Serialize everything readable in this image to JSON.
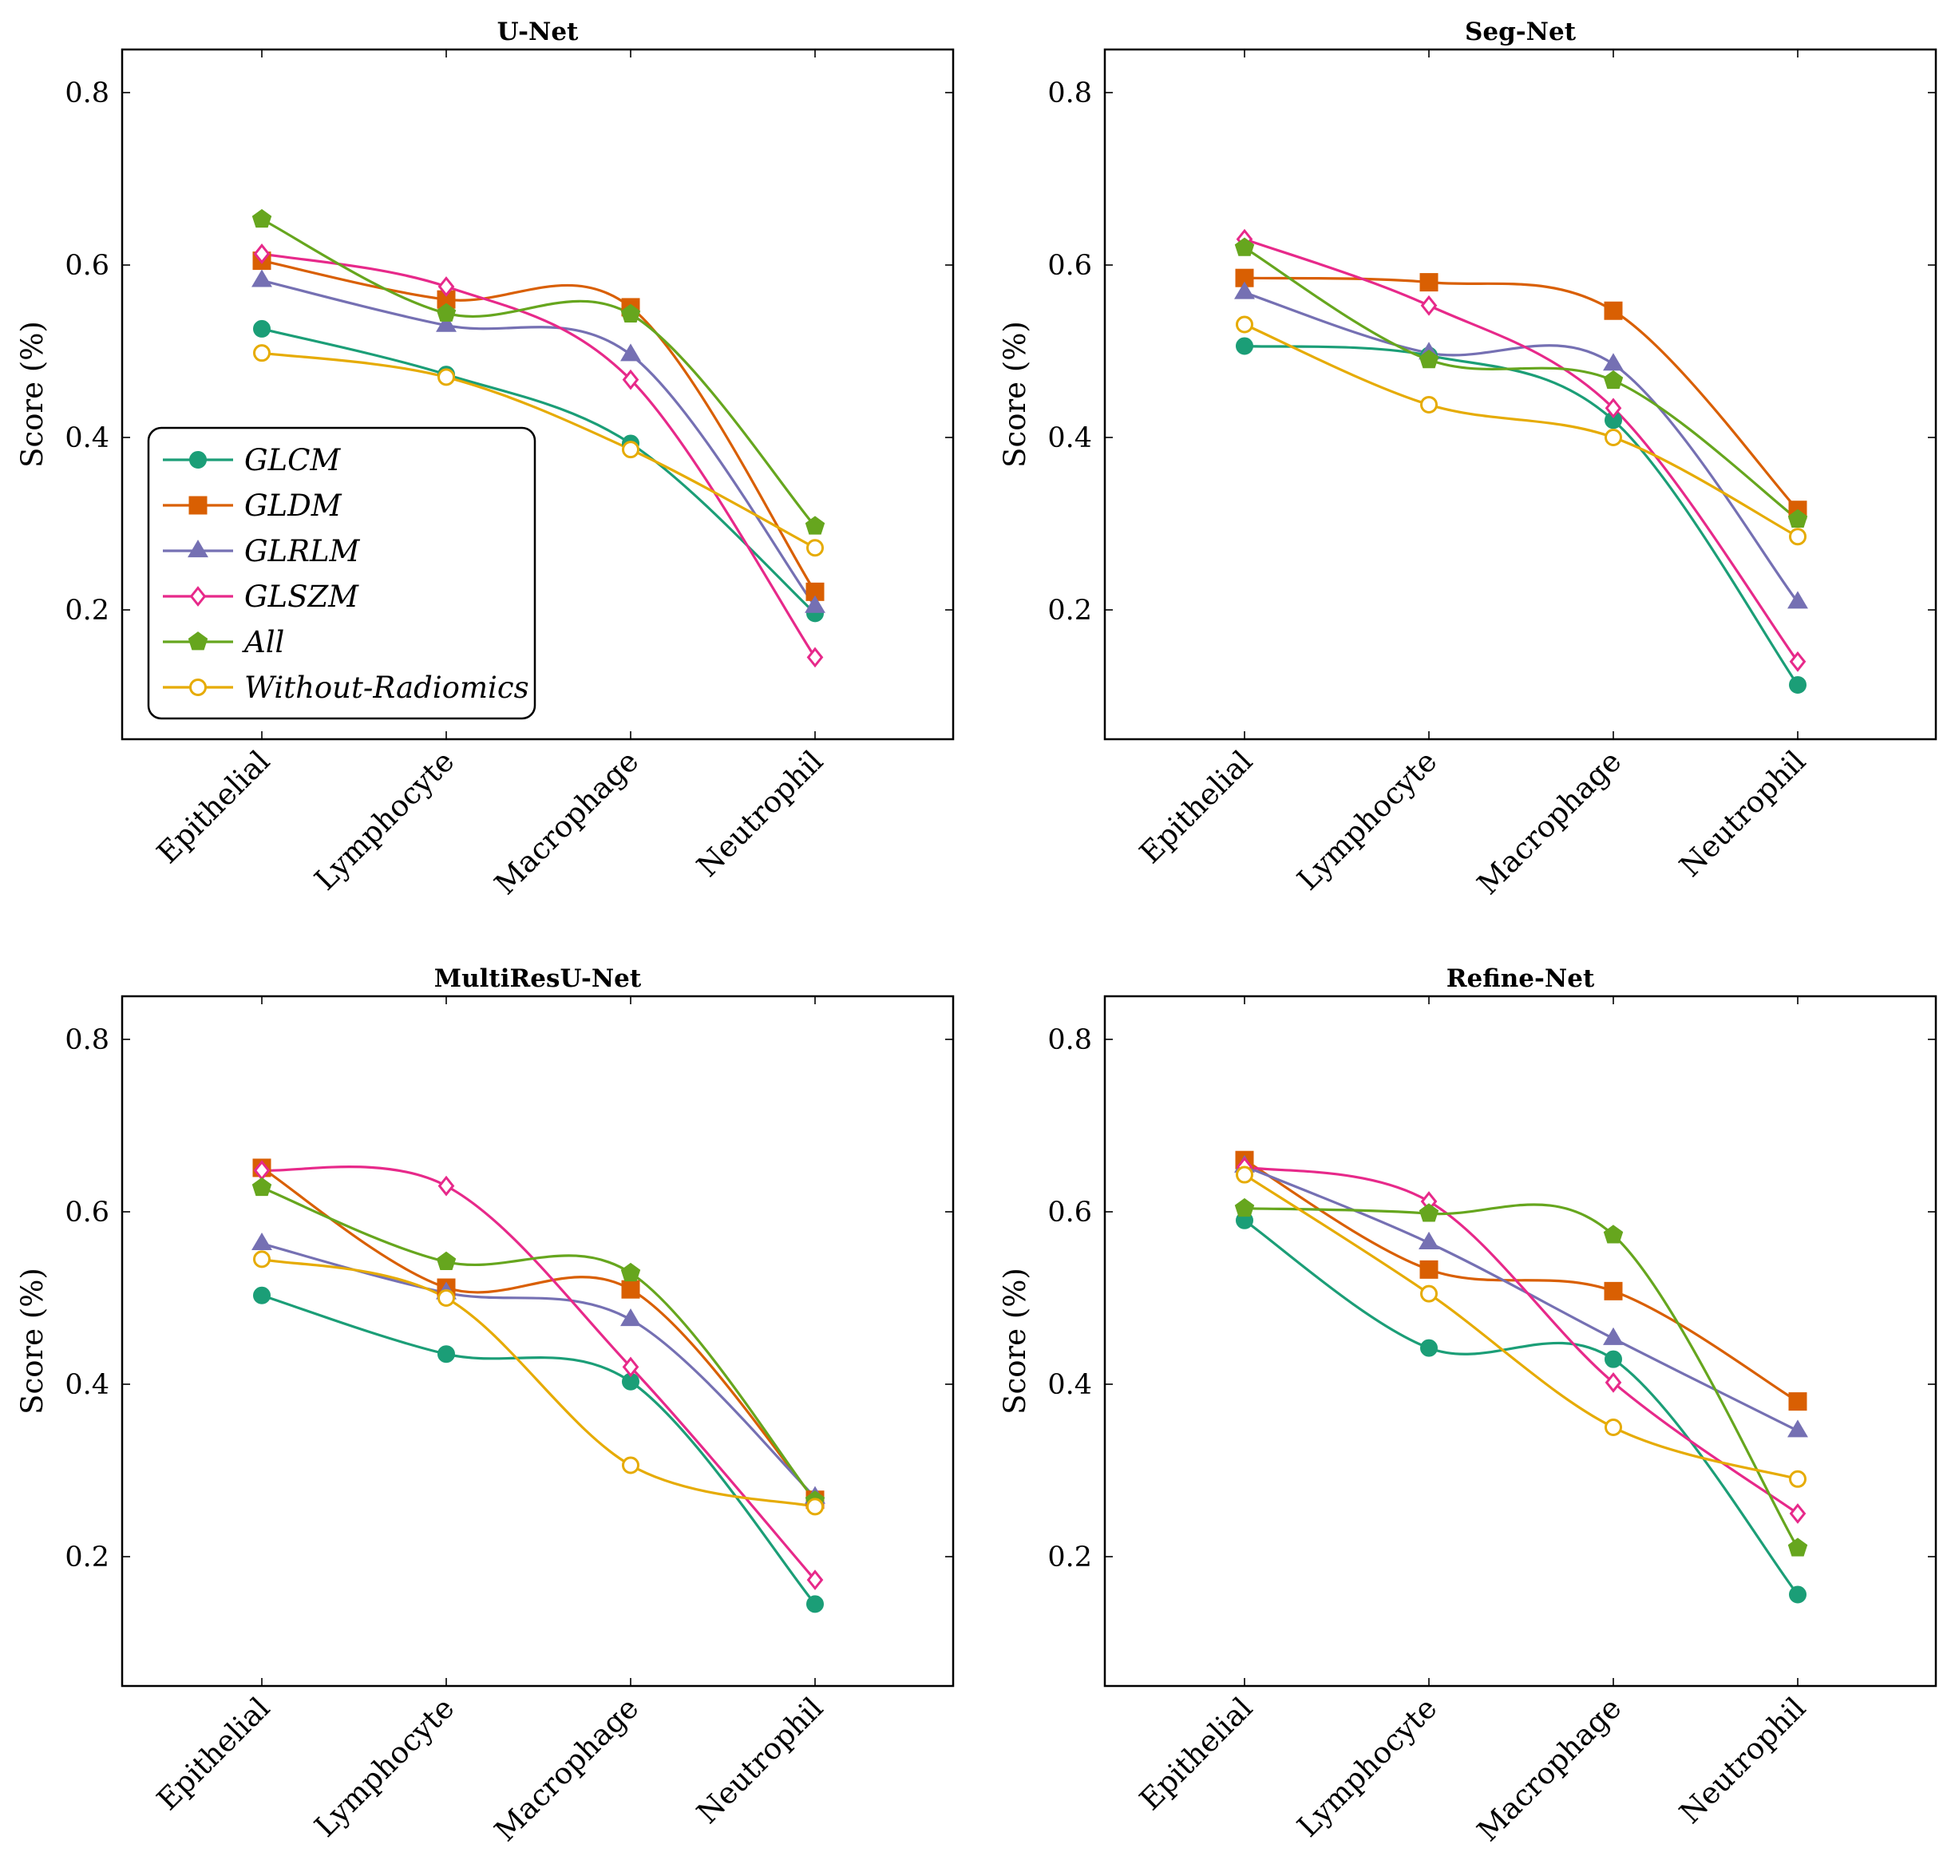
{
  "chart_data": [
    {
      "type": "line",
      "title": "U-Net",
      "xlabel": "",
      "ylabel": "Score (%)",
      "ylim": [
        0.05,
        0.85
      ],
      "yticks": [
        0.2,
        0.4,
        0.6,
        0.8
      ],
      "ytick_labels": [
        "0.2",
        "0.4",
        "0.6",
        "0.8"
      ],
      "categories": [
        "Epithelial",
        "Lymphocyte",
        "Macrophage",
        "Neutrophil"
      ],
      "legend_position": "lower-left",
      "series": [
        {
          "name": "GLCM",
          "values": [
            0.526,
            0.473,
            0.393,
            0.196
          ]
        },
        {
          "name": "GLDM",
          "values": [
            0.605,
            0.56,
            0.551,
            0.221
          ]
        },
        {
          "name": "GLRLM",
          "values": [
            0.582,
            0.53,
            0.496,
            0.204
          ]
        },
        {
          "name": "GLSZM",
          "values": [
            0.613,
            0.575,
            0.467,
            0.145
          ]
        },
        {
          "name": "All",
          "values": [
            0.653,
            0.544,
            0.543,
            0.297
          ]
        },
        {
          "name": "Without-Radiomics",
          "values": [
            0.498,
            0.47,
            0.386,
            0.272
          ]
        }
      ]
    },
    {
      "type": "line",
      "title": "Seg-Net",
      "xlabel": "",
      "ylabel": "Score (%)",
      "ylim": [
        0.05,
        0.85
      ],
      "yticks": [
        0.2,
        0.4,
        0.6,
        0.8
      ],
      "ytick_labels": [
        "0.2",
        "0.4",
        "0.6",
        "0.8"
      ],
      "categories": [
        "Epithelial",
        "Lymphocyte",
        "Macrophage",
        "Neutrophil"
      ],
      "series": [
        {
          "name": "GLCM",
          "values": [
            0.506,
            0.495,
            0.42,
            0.113
          ]
        },
        {
          "name": "GLDM",
          "values": [
            0.585,
            0.58,
            0.547,
            0.316
          ]
        },
        {
          "name": "GLRLM",
          "values": [
            0.568,
            0.498,
            0.485,
            0.209
          ]
        },
        {
          "name": "GLSZM",
          "values": [
            0.63,
            0.553,
            0.434,
            0.14
          ]
        },
        {
          "name": "All",
          "values": [
            0.62,
            0.49,
            0.466,
            0.305
          ]
        },
        {
          "name": "Without-Radiomics",
          "values": [
            0.531,
            0.438,
            0.4,
            0.285
          ]
        }
      ]
    },
    {
      "type": "line",
      "title": "MultiResU-Net",
      "xlabel": "",
      "ylabel": "Score (%)",
      "ylim": [
        0.05,
        0.85
      ],
      "yticks": [
        0.2,
        0.4,
        0.6,
        0.8
      ],
      "ytick_labels": [
        "0.2",
        "0.4",
        "0.6",
        "0.8"
      ],
      "categories": [
        "Epithelial",
        "Lymphocyte",
        "Macrophage",
        "Neutrophil"
      ],
      "series": [
        {
          "name": "GLCM",
          "values": [
            0.503,
            0.435,
            0.403,
            0.145
          ]
        },
        {
          "name": "GLDM",
          "values": [
            0.651,
            0.512,
            0.51,
            0.266
          ]
        },
        {
          "name": "GLRLM",
          "values": [
            0.563,
            0.506,
            0.475,
            0.269
          ]
        },
        {
          "name": "GLSZM",
          "values": [
            0.648,
            0.63,
            0.42,
            0.173
          ]
        },
        {
          "name": "All",
          "values": [
            0.628,
            0.542,
            0.529,
            0.265
          ]
        },
        {
          "name": "Without-Radiomics",
          "values": [
            0.545,
            0.5,
            0.306,
            0.258
          ]
        }
      ]
    },
    {
      "type": "line",
      "title": "Refine-Net",
      "xlabel": "",
      "ylabel": "Score (%)",
      "ylim": [
        0.05,
        0.85
      ],
      "yticks": [
        0.2,
        0.4,
        0.6,
        0.8
      ],
      "ytick_labels": [
        "0.2",
        "0.4",
        "0.6",
        "0.8"
      ],
      "categories": [
        "Epithelial",
        "Lymphocyte",
        "Macrophage",
        "Neutrophil"
      ],
      "series": [
        {
          "name": "GLCM",
          "values": [
            0.59,
            0.442,
            0.429,
            0.156
          ]
        },
        {
          "name": "GLDM",
          "values": [
            0.66,
            0.533,
            0.508,
            0.38
          ]
        },
        {
          "name": "GLRLM",
          "values": [
            0.653,
            0.564,
            0.453,
            0.346
          ]
        },
        {
          "name": "GLSZM",
          "values": [
            0.652,
            0.612,
            0.402,
            0.25
          ]
        },
        {
          "name": "All",
          "values": [
            0.604,
            0.598,
            0.573,
            0.21
          ]
        },
        {
          "name": "Without-Radiomics",
          "values": [
            0.643,
            0.505,
            0.35,
            0.29
          ]
        }
      ]
    }
  ],
  "series_style": [
    {
      "name": "GLCM",
      "color": "#1b9e77",
      "marker": "circle",
      "filled": true
    },
    {
      "name": "GLDM",
      "color": "#d95f02",
      "marker": "square",
      "filled": true
    },
    {
      "name": "GLRLM",
      "color": "#7570b3",
      "marker": "triangle",
      "filled": true
    },
    {
      "name": "GLSZM",
      "color": "#e7298a",
      "marker": "diamond",
      "filled": false
    },
    {
      "name": "All",
      "color": "#66a61e",
      "marker": "pentagon",
      "filled": true
    },
    {
      "name": "Without-Radiomics",
      "color": "#e6ab02",
      "marker": "circle",
      "filled": false
    }
  ]
}
